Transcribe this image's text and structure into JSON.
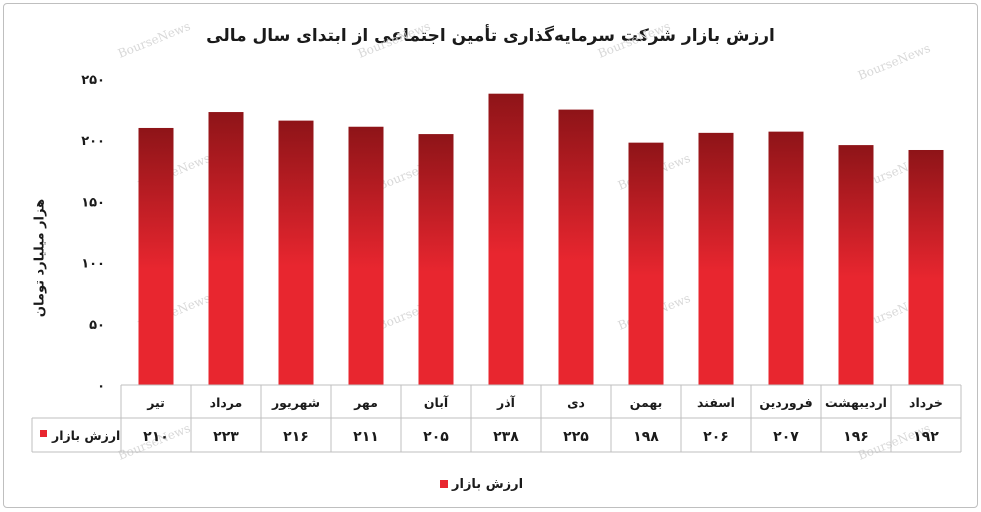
{
  "chart_data": {
    "type": "bar",
    "title": "ارزش بازار شرکت سرمایه‌گذاری تأمین اجتماعی  از ابتدای سال مالی",
    "ylabel": "هزار میلیارد تومان",
    "xlabel": "",
    "ylim": [
      0,
      250
    ],
    "yticks": [
      0,
      50,
      100,
      150,
      200,
      250
    ],
    "ytick_labels": [
      "۰",
      "۵۰",
      "۱۰۰",
      "۱۵۰",
      "۲۰۰",
      "۲۵۰"
    ],
    "categories": [
      "تیر",
      "مرداد",
      "شهریور",
      "مهر",
      "آبان",
      "آذر",
      "دی",
      "بهمن",
      "اسفند",
      "فروردین",
      "اردیبهشت",
      "خرداد"
    ],
    "series": [
      {
        "name": "ارزش بازار",
        "values": [
          210,
          223,
          216,
          211,
          205,
          238,
          225,
          198,
          206,
          207,
          196,
          192
        ],
        "value_labels": [
          "۲۱۰",
          "۲۲۳",
          "۲۱۶",
          "۲۱۱",
          "۲۰۵",
          "۲۳۸",
          "۲۲۵",
          "۱۹۸",
          "۲۰۶",
          "۲۰۷",
          "۱۹۶",
          "۱۹۲"
        ],
        "color": "#e8262f",
        "color_dark": "#8e1418"
      }
    ],
    "grid": false,
    "legend": "bottom-center",
    "data_table": true
  },
  "watermark": "BourseNews"
}
